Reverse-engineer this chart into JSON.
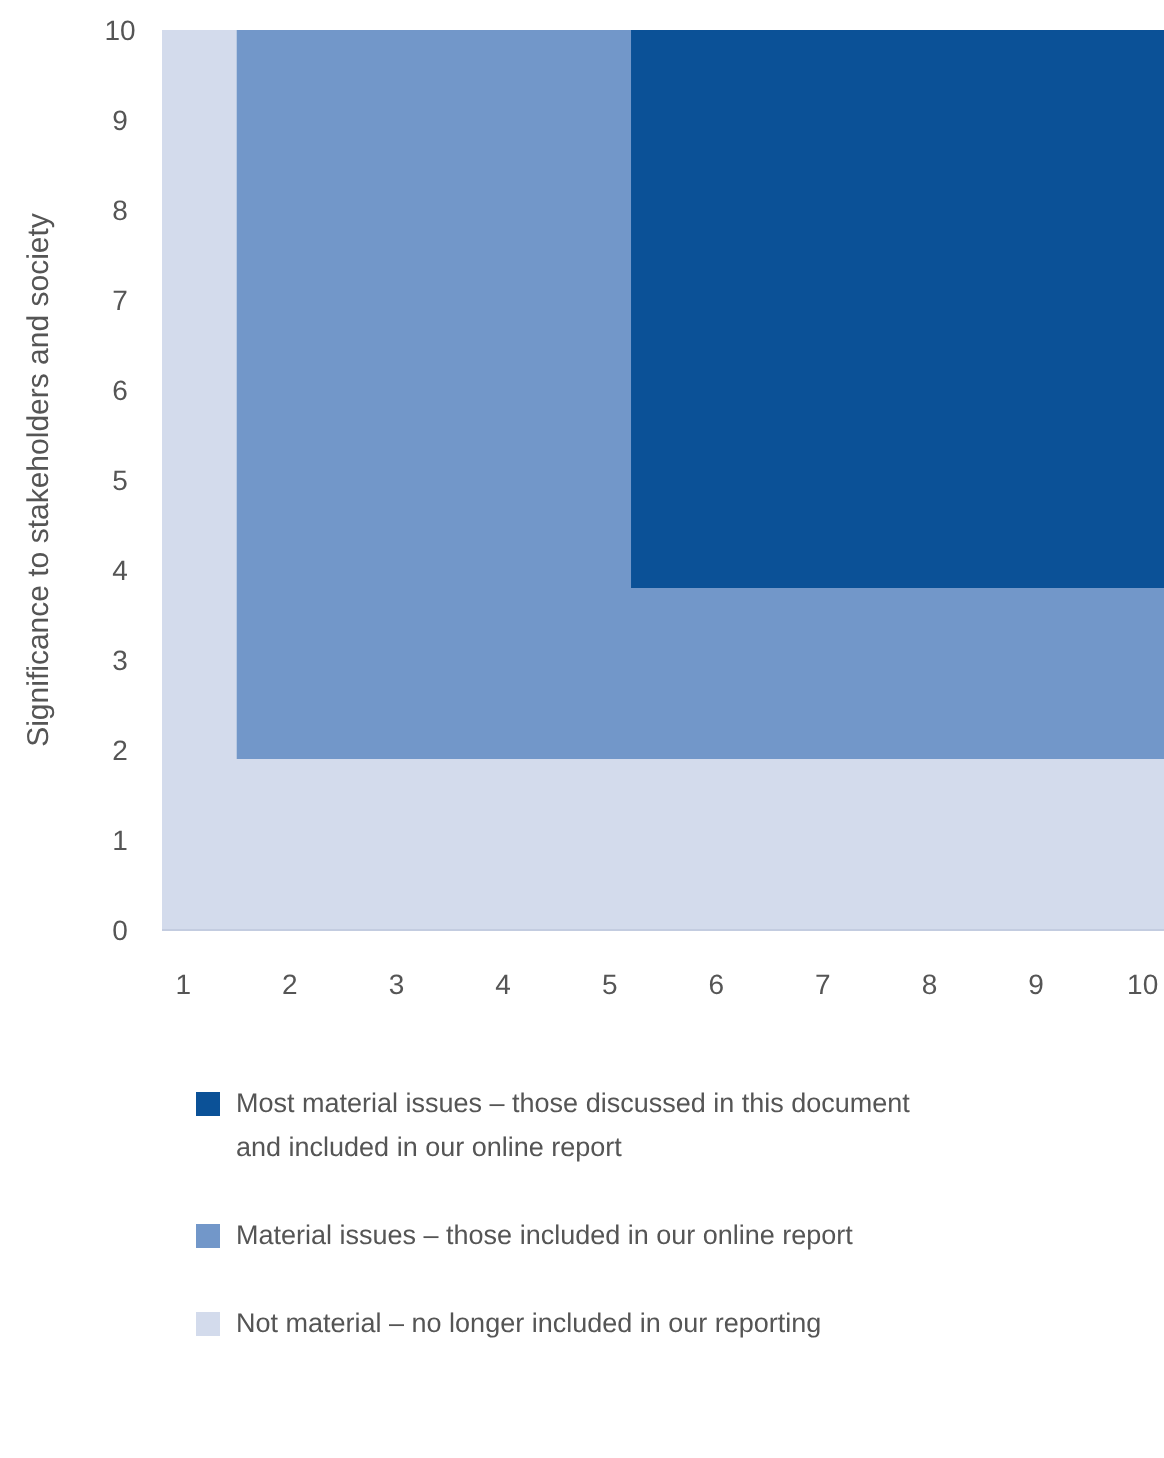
{
  "chart_data": {
    "type": "area",
    "stacked": true,
    "ylabel": "Significance to stakeholders and society",
    "x": [
      0.8,
      1.5,
      1.5,
      5.2,
      5.2,
      10.2
    ],
    "series": [
      {
        "name": "Not material – no longer included in our reporting",
        "color": "#d3dbec",
        "values": [
          10,
          10,
          1.9,
          1.9,
          1.9,
          1.9
        ]
      },
      {
        "name": "Material issues – those included in our online report",
        "color": "#7297c9",
        "values": [
          0,
          0,
          8.1,
          8.1,
          1.9,
          1.9
        ]
      },
      {
        "name": "Most material issues – those discussed in this document and included in our online report",
        "color": "#0b5197",
        "values": [
          0,
          0,
          0,
          0,
          6.2,
          6.2
        ]
      }
    ],
    "xlim": [
      0.8,
      10.2
    ],
    "ylim": [
      0,
      10
    ],
    "xticks": [
      1,
      2,
      3,
      4,
      5,
      6,
      7,
      8,
      9,
      10
    ],
    "yticks": [
      0,
      1,
      2,
      3,
      4,
      5,
      6,
      7,
      8,
      9,
      10
    ],
    "grid": false,
    "legend": "bottom"
  }
}
